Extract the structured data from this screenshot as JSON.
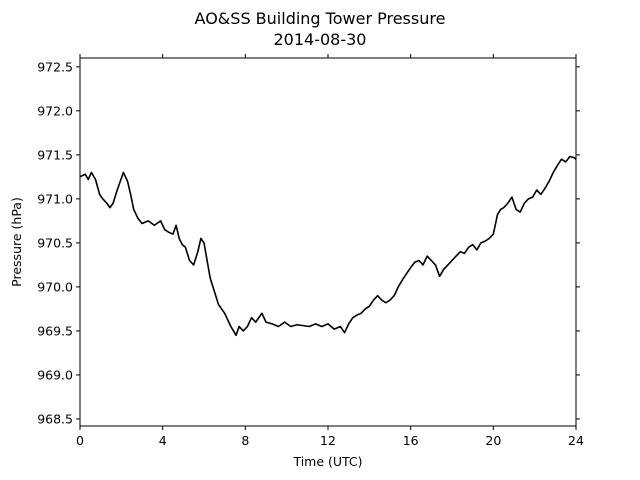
{
  "chart_data": {
    "type": "line",
    "title": "AO&SS Building Tower Pressure",
    "subtitle": "2014-08-30",
    "xlabel": "Time (UTC)",
    "ylabel": "Pressure (hPa)",
    "xlim": [
      0,
      24
    ],
    "ylim": [
      968.42,
      972.6
    ],
    "xticks": [
      0,
      4,
      8,
      12,
      16,
      20,
      24
    ],
    "yticks": [
      968.5,
      969.0,
      969.5,
      970.0,
      970.5,
      971.0,
      971.5,
      972.0,
      972.5
    ],
    "ytick_labels": [
      "968.5",
      "969.0",
      "969.5",
      "970.0",
      "970.5",
      "971.0",
      "971.5",
      "972.0",
      "972.5"
    ],
    "grid": false,
    "line_color": "#000000",
    "series": [
      {
        "x": [
          0,
          0.25,
          0.4,
          0.55,
          0.75,
          0.95,
          1.1,
          1.3,
          1.45,
          1.6,
          1.8,
          1.95,
          2.1,
          2.3,
          2.45,
          2.6,
          2.8,
          3.0,
          3.3,
          3.6,
          3.9,
          4.1,
          4.3,
          4.5,
          4.65,
          4.8,
          4.95,
          5.1,
          5.3,
          5.5,
          5.7,
          5.85,
          6.0,
          6.15,
          6.3,
          6.5,
          6.7,
          7.0,
          7.3,
          7.55,
          7.7,
          7.9,
          8.1,
          8.3,
          8.5,
          8.8,
          9.0,
          9.3,
          9.6,
          9.9,
          10.2,
          10.5,
          10.8,
          11.1,
          11.4,
          11.7,
          12.0,
          12.3,
          12.6,
          12.8,
          13.0,
          13.2,
          13.4,
          13.6,
          13.8,
          14.0,
          14.2,
          14.4,
          14.6,
          14.8,
          15.0,
          15.2,
          15.4,
          15.6,
          15.8,
          16.0,
          16.2,
          16.4,
          16.6,
          16.8,
          17.0,
          17.2,
          17.4,
          17.6,
          17.8,
          18.0,
          18.2,
          18.4,
          18.6,
          18.8,
          19.0,
          19.2,
          19.4,
          19.6,
          19.8,
          20.0,
          20.2,
          20.35,
          20.5,
          20.7,
          20.9,
          21.1,
          21.3,
          21.5,
          21.7,
          21.9,
          22.1,
          22.3,
          22.5,
          22.7,
          22.9,
          23.1,
          23.3,
          23.5,
          23.7,
          23.9,
          24.0
        ],
        "y": [
          971.25,
          971.28,
          971.22,
          971.3,
          971.22,
          971.05,
          971.0,
          970.95,
          970.9,
          970.95,
          971.1,
          971.2,
          971.3,
          971.2,
          971.05,
          970.88,
          970.78,
          970.72,
          970.75,
          970.7,
          970.75,
          970.65,
          970.62,
          970.6,
          970.7,
          970.55,
          970.48,
          970.45,
          970.3,
          970.25,
          970.4,
          970.55,
          970.5,
          970.3,
          970.1,
          969.95,
          969.8,
          969.7,
          969.55,
          969.45,
          969.55,
          969.5,
          969.55,
          969.65,
          969.6,
          969.7,
          969.6,
          969.58,
          969.55,
          969.6,
          969.55,
          969.57,
          969.56,
          969.55,
          969.58,
          969.55,
          969.58,
          969.52,
          969.55,
          969.48,
          969.58,
          969.65,
          969.68,
          969.7,
          969.75,
          969.78,
          969.85,
          969.9,
          969.85,
          969.82,
          969.85,
          969.9,
          970.0,
          970.08,
          970.15,
          970.22,
          970.28,
          970.3,
          970.25,
          970.35,
          970.3,
          970.25,
          970.12,
          970.2,
          970.25,
          970.3,
          970.35,
          970.4,
          970.38,
          970.45,
          970.48,
          970.42,
          970.5,
          970.52,
          970.55,
          970.6,
          970.82,
          970.88,
          970.9,
          970.95,
          971.02,
          970.88,
          970.85,
          970.95,
          971.0,
          971.02,
          971.1,
          971.05,
          971.12,
          971.2,
          971.3,
          971.38,
          971.45,
          971.42,
          971.48,
          971.47,
          971.45
        ]
      }
    ]
  }
}
